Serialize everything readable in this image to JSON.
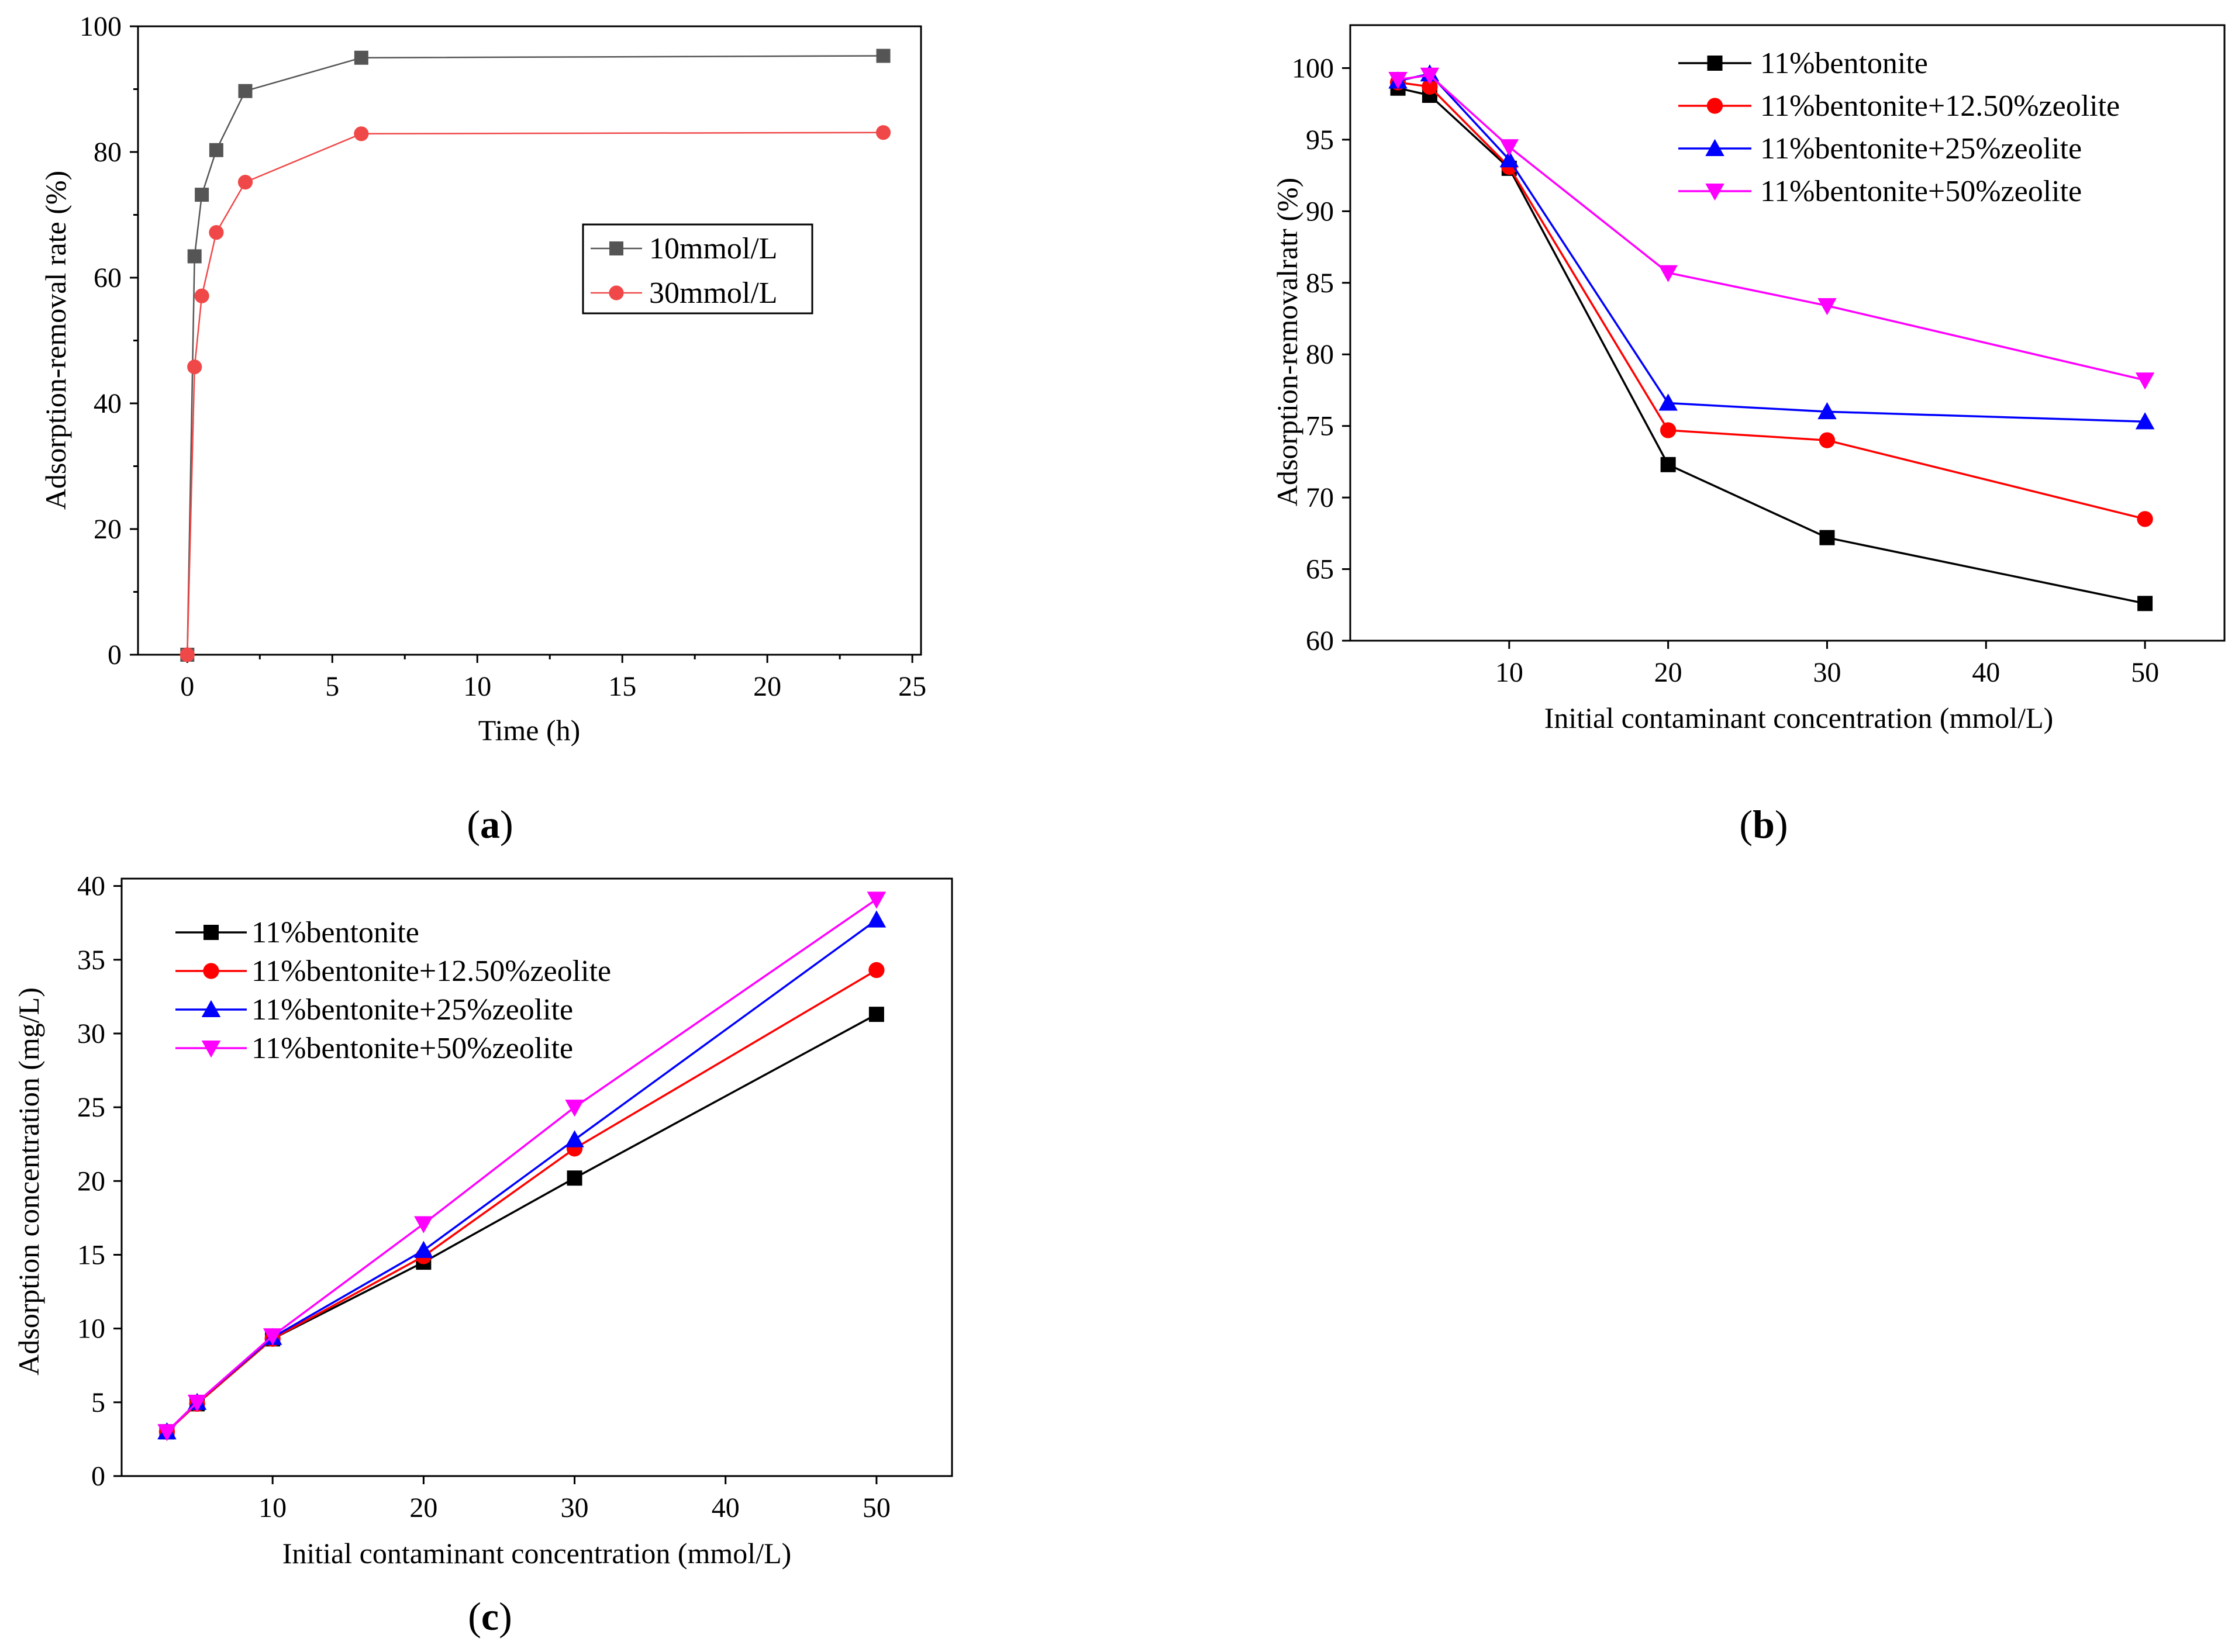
{
  "figure": {
    "panels": [
      {
        "id": "a",
        "letter": "a"
      },
      {
        "id": "b",
        "letter": "b"
      },
      {
        "id": "c",
        "letter": "c"
      }
    ]
  },
  "chart_data": [
    {
      "id": "a",
      "type": "line",
      "title": "",
      "xlabel": "Time (h)",
      "ylabel": "Adsorption-removal rate (%)",
      "xlim": [
        -1.7,
        25.3
      ],
      "ylim": [
        0,
        100
      ],
      "xticks": [
        0,
        5,
        10,
        15,
        20,
        25
      ],
      "yticks": [
        0,
        20,
        40,
        60,
        80,
        100
      ],
      "grid": false,
      "legend_position": "center-right",
      "legend_box": true,
      "series": [
        {
          "name": "10mmol/L",
          "color": "#555555",
          "marker": "square",
          "x": [
            0,
            0.25,
            0.5,
            1,
            2,
            6,
            24
          ],
          "y": [
            0,
            63.4,
            73.2,
            80.3,
            89.7,
            95.0,
            95.3
          ]
        },
        {
          "name": "30mmol/L",
          "color": "#f04848",
          "marker": "circle",
          "x": [
            0,
            0.25,
            0.5,
            1,
            2,
            6,
            24
          ],
          "y": [
            0,
            45.8,
            57.1,
            67.2,
            75.2,
            82.9,
            83.1
          ]
        }
      ]
    },
    {
      "id": "b",
      "type": "line",
      "title": "",
      "xlabel": "Initial contaminant concentration (mmol/L)",
      "ylabel": "Adsorption-removalratr (%)",
      "xlim": [
        0,
        55
      ],
      "ylim": [
        60,
        103
      ],
      "xticks": [
        10,
        20,
        30,
        40,
        50
      ],
      "yticks": [
        60,
        65,
        70,
        75,
        80,
        85,
        90,
        95,
        100
      ],
      "grid": false,
      "legend_position": "top-left",
      "legend_box": false,
      "series": [
        {
          "name": "11%bentonite",
          "color": "#000000",
          "marker": "square",
          "x": [
            3,
            5,
            10,
            20,
            30,
            50
          ],
          "y": [
            98.6,
            98.1,
            93.0,
            72.3,
            67.2,
            62.6
          ]
        },
        {
          "name": "11%bentonite+12.50%zeolite",
          "color": "#ff0000",
          "marker": "circle",
          "x": [
            3,
            5,
            10,
            20,
            30,
            50
          ],
          "y": [
            99.0,
            98.7,
            93.1,
            74.7,
            74.0,
            68.5
          ]
        },
        {
          "name": "11%bentonite+25%zeolite",
          "color": "#0000ff",
          "marker": "triangle-up",
          "x": [
            3,
            5,
            10,
            20,
            30,
            50
          ],
          "y": [
            99.1,
            99.6,
            93.6,
            76.6,
            76.0,
            75.3
          ]
        },
        {
          "name": "11%bentonite+50%zeolite",
          "color": "#ff00ff",
          "marker": "triangle-down",
          "x": [
            3,
            5,
            10,
            20,
            30,
            50
          ],
          "y": [
            99.2,
            99.5,
            94.5,
            85.7,
            83.4,
            78.2
          ]
        }
      ]
    },
    {
      "id": "c",
      "type": "line",
      "title": "",
      "xlabel": "Initial contaminant concentration (mmol/L)",
      "ylabel": "Adsorption concentration (mg/L)",
      "xlim": [
        0,
        55
      ],
      "ylim": [
        0,
        40.5
      ],
      "xticks": [
        10,
        20,
        30,
        40,
        50
      ],
      "yticks": [
        0,
        5,
        10,
        15,
        20,
        25,
        30,
        35,
        40
      ],
      "grid": false,
      "legend_position": "top-left",
      "legend_box": false,
      "series": [
        {
          "name": "11%bentonite",
          "color": "#000000",
          "marker": "square",
          "x": [
            3,
            5,
            10,
            20,
            30,
            50
          ],
          "y": [
            3.0,
            4.9,
            9.3,
            14.5,
            20.2,
            31.3
          ]
        },
        {
          "name": "11%bentonite+12.50%zeolite",
          "color": "#ff0000",
          "marker": "circle",
          "x": [
            3,
            5,
            10,
            20,
            30,
            50
          ],
          "y": [
            3.0,
            4.9,
            9.3,
            14.9,
            22.2,
            34.3
          ]
        },
        {
          "name": "11%bentonite+25%zeolite",
          "color": "#0000ff",
          "marker": "triangle-up",
          "x": [
            3,
            5,
            10,
            20,
            30,
            50
          ],
          "y": [
            3.0,
            5.0,
            9.4,
            15.3,
            22.8,
            37.7
          ]
        },
        {
          "name": "11%bentonite+50%zeolite",
          "color": "#ff00ff",
          "marker": "triangle-down",
          "x": [
            3,
            5,
            10,
            20,
            30,
            50
          ],
          "y": [
            3.0,
            5.0,
            9.5,
            17.1,
            25.0,
            39.1
          ]
        }
      ]
    }
  ]
}
